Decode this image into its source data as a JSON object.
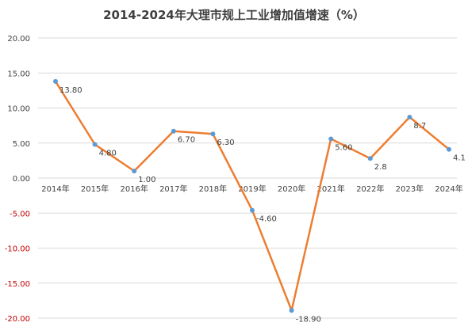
{
  "chart_data": {
    "type": "line",
    "title": "2014-2024年大理市规上工业增加值增速（%）",
    "xlabel": "",
    "ylabel": "",
    "categories": [
      "2014年",
      "2015年",
      "2016年",
      "2017年",
      "2018年",
      "2019年",
      "2020年",
      "2021年",
      "2022年",
      "2023年",
      "2024年"
    ],
    "series": [
      {
        "values": [
          13.8,
          4.8,
          1.0,
          6.7,
          6.3,
          -4.6,
          -18.9,
          5.6,
          2.8,
          8.7,
          4.1
        ],
        "data_labels": [
          "13.80",
          "4.80",
          "1.00",
          "6.70",
          "6.30",
          "-4.60",
          "-18.90",
          "5.60",
          "2.8",
          "8.7",
          "4.1"
        ]
      }
    ],
    "y_ticks": [
      20,
      15,
      10,
      5,
      0,
      -5,
      -10,
      -15,
      -20
    ],
    "y_tick_labels": [
      "20.00",
      "15.00",
      "10.00",
      "5.00",
      "0.00",
      "-5.00",
      "-10.00",
      "-15.00",
      "-20.00"
    ],
    "ylim": [
      -20,
      20
    ],
    "grid": true,
    "legend": "none",
    "colors": {
      "line": "#ED7D31",
      "marker": "#5B9BD5",
      "grid": "#D9D9D9",
      "text": "#404040",
      "negative_tick": "#C00000"
    }
  }
}
